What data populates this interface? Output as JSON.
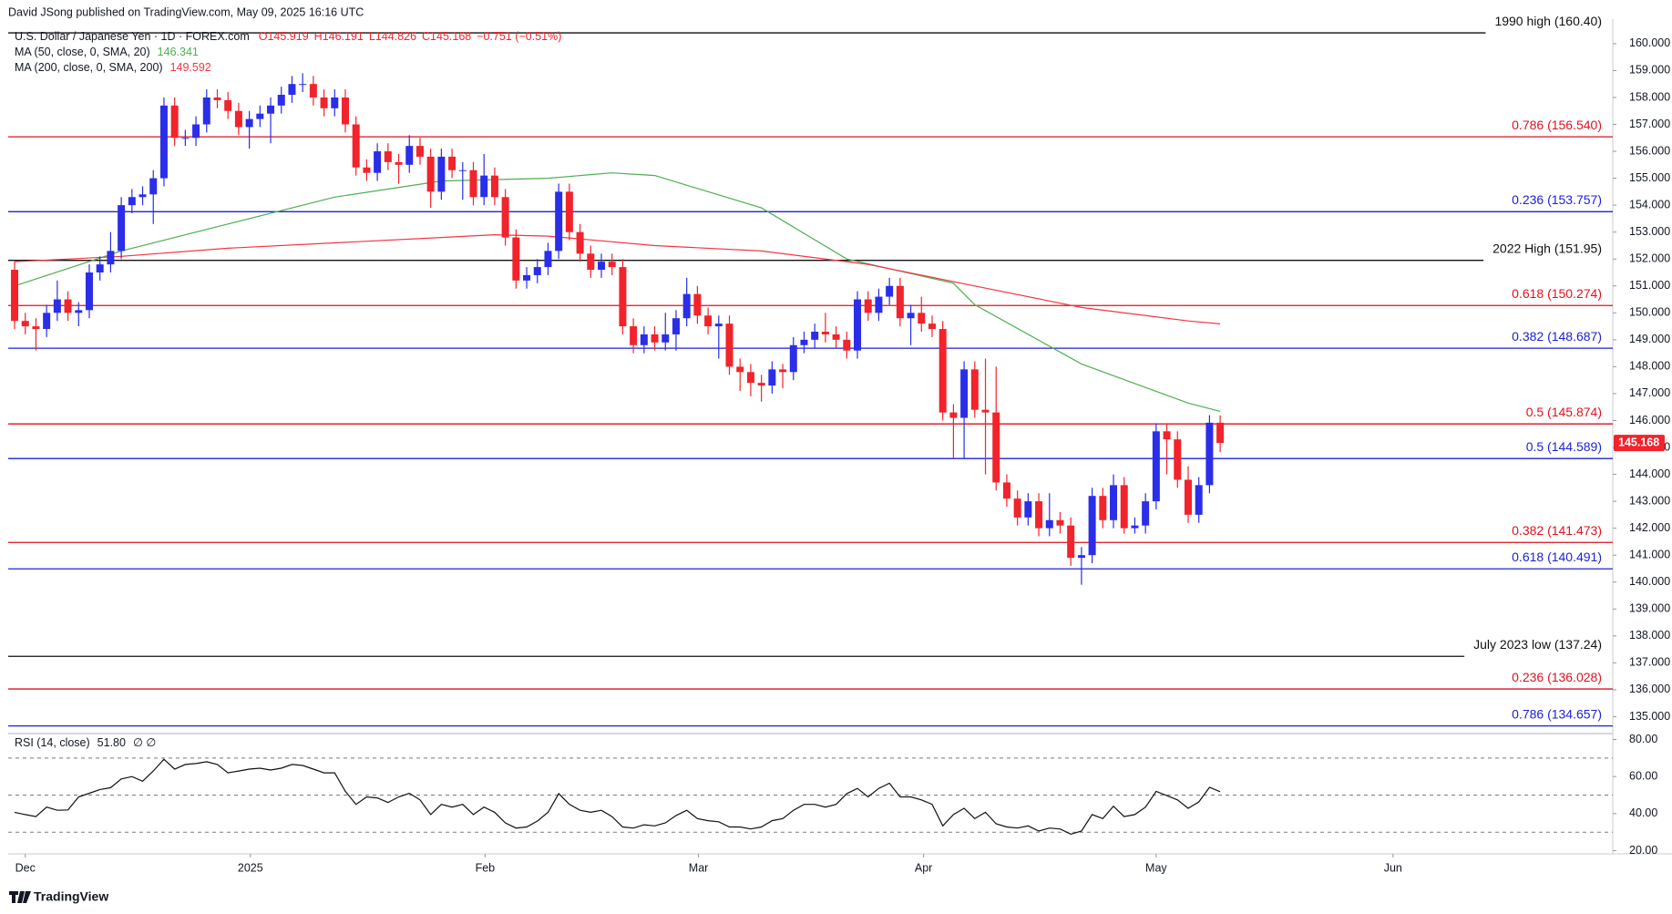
{
  "chart_data": {
    "type": "candlestick",
    "publisher": "David JSong published on TradingView.com, May 09, 2025 16:16 UTC",
    "symbol": "U.S. Dollar / Japanese Yen · 1D · FOREX.com",
    "ohlc_legend": [
      "O145.919",
      "H146.191",
      "L144.826",
      "C145.168",
      "−0.751 (−0.51%)"
    ],
    "brand": "TradingView",
    "xlim": [
      -0.6,
      149.8
    ],
    "xticks": [
      {
        "value": 1,
        "label": "Dec"
      },
      {
        "value": 22.1,
        "label": "2025"
      },
      {
        "value": 44.1,
        "label": "Feb"
      },
      {
        "value": 64.1,
        "label": "Mar"
      },
      {
        "value": 85.2,
        "label": "Apr"
      },
      {
        "value": 107,
        "label": "May"
      },
      {
        "value": 129.2,
        "label": "Jun"
      }
    ],
    "ylim": [
      134.44,
      160.91
    ],
    "yticks": [
      {
        "value": 135,
        "label": "135.000"
      },
      {
        "value": 136,
        "label": "136.000"
      },
      {
        "value": 137,
        "label": "137.000"
      },
      {
        "value": 138,
        "label": "138.000"
      },
      {
        "value": 139,
        "label": "139.000"
      },
      {
        "value": 140,
        "label": "140.000"
      },
      {
        "value": 141,
        "label": "141.000"
      },
      {
        "value": 142,
        "label": "142.000"
      },
      {
        "value": 143,
        "label": "143.000"
      },
      {
        "value": 144,
        "label": "144.000"
      },
      {
        "value": 145,
        "label": "145.000"
      },
      {
        "value": 146,
        "label": "146.000"
      },
      {
        "value": 147,
        "label": "147.000"
      },
      {
        "value": 148,
        "label": "148.000"
      },
      {
        "value": 149,
        "label": "149.000"
      },
      {
        "value": 150,
        "label": "150.000"
      },
      {
        "value": 151,
        "label": "151.000"
      },
      {
        "value": 152,
        "label": "152.000"
      },
      {
        "value": 153,
        "label": "153.000"
      },
      {
        "value": 154,
        "label": "154.000"
      },
      {
        "value": 155,
        "label": "155.000"
      },
      {
        "value": 156,
        "label": "156.000"
      },
      {
        "value": 157,
        "label": "157.000"
      },
      {
        "value": 158,
        "label": "158.000"
      },
      {
        "value": 159,
        "label": "159.000"
      },
      {
        "value": 160,
        "label": "160.000"
      }
    ],
    "candles": {
      "up_color": "#2a2ee8",
      "down_color": "#f2232b",
      "x": [
        0,
        1,
        2,
        3,
        4,
        5,
        6,
        7,
        8,
        9,
        10,
        11,
        12,
        13,
        14,
        15,
        16,
        17,
        18,
        19,
        20,
        21,
        22,
        23,
        24,
        25,
        26,
        27,
        28,
        29,
        30,
        31,
        32,
        33,
        34,
        35,
        36,
        37,
        38,
        39,
        40,
        41,
        42,
        43,
        44,
        45,
        46,
        47,
        48,
        49,
        50,
        51,
        52,
        53,
        54,
        55,
        56,
        57,
        58,
        59,
        60,
        61,
        62,
        63,
        64,
        65,
        66,
        67,
        68,
        69,
        70,
        71,
        72,
        73,
        74,
        75,
        76,
        77,
        78,
        79,
        80,
        81,
        82,
        83,
        84,
        85,
        86,
        87,
        88,
        89,
        90,
        91,
        92,
        93,
        94,
        95,
        96,
        97,
        98,
        99,
        100,
        101,
        102,
        103,
        104,
        105,
        106,
        107,
        108,
        109,
        110,
        111,
        112,
        113
      ],
      "open": [
        151.6,
        149.7,
        149.5,
        149.4,
        150.0,
        150.5,
        150.0,
        150.1,
        151.5,
        151.8,
        152.3,
        154.0,
        154.3,
        154.4,
        155.0,
        157.7,
        156.5,
        156.5,
        157.0,
        158.0,
        157.9,
        157.5,
        156.9,
        157.2,
        157.4,
        157.7,
        158.1,
        158.5,
        158.5,
        158.0,
        157.6,
        158.0,
        157.0,
        155.4,
        155.2,
        156.0,
        155.6,
        155.5,
        156.2,
        155.8,
        154.5,
        155.8,
        155.3,
        155.3,
        154.3,
        155.1,
        154.3,
        152.8,
        151.2,
        151.4,
        151.7,
        152.3,
        154.5,
        153.0,
        152.2,
        151.6,
        151.9,
        151.7,
        149.5,
        148.8,
        149.2,
        148.9,
        149.2,
        149.8,
        150.7,
        149.9,
        149.5,
        149.6,
        148.0,
        147.8,
        147.4,
        147.3,
        147.9,
        147.8,
        148.8,
        149.0,
        149.3,
        149.2,
        149.0,
        148.6,
        150.5,
        150.0,
        150.6,
        151.0,
        149.8,
        150.0,
        149.6,
        149.4,
        146.3,
        146.1,
        147.9,
        146.4,
        146.3,
        143.7,
        143.1,
        142.4,
        143.0,
        142.0,
        142.3,
        142.1,
        140.9,
        141.0,
        143.2,
        142.3,
        143.6,
        142.0,
        142.1,
        143.0,
        145.6,
        145.3,
        143.8,
        142.5,
        143.6,
        145.919
      ],
      "high": [
        151.9,
        150.0,
        149.8,
        150.3,
        151.2,
        150.8,
        150.4,
        151.8,
        152.1,
        153.0,
        154.3,
        154.6,
        154.7,
        155.3,
        158.0,
        158.0,
        156.8,
        157.3,
        158.3,
        158.3,
        158.2,
        157.8,
        157.5,
        157.7,
        158.0,
        158.4,
        158.8,
        158.9,
        158.8,
        158.3,
        158.3,
        158.3,
        157.3,
        155.7,
        156.3,
        156.3,
        155.9,
        156.6,
        156.5,
        156.1,
        156.1,
        156.1,
        155.6,
        155.6,
        155.9,
        155.4,
        154.6,
        153.1,
        151.7,
        152.0,
        152.6,
        154.8,
        154.8,
        153.3,
        152.5,
        152.2,
        152.2,
        152.0,
        149.8,
        149.5,
        149.5,
        150.0,
        150.1,
        151.3,
        151.0,
        150.2,
        149.9,
        149.9,
        148.3,
        148.1,
        147.7,
        148.2,
        148.1,
        149.1,
        149.3,
        149.6,
        150.0,
        149.5,
        149.3,
        150.8,
        150.8,
        150.9,
        151.3,
        151.3,
        150.3,
        150.6,
        149.9,
        149.7,
        146.6,
        148.2,
        148.2,
        148.3,
        148.0,
        144.0,
        143.4,
        143.3,
        143.3,
        143.3,
        142.6,
        142.4,
        141.3,
        143.5,
        143.5,
        144.0,
        143.9,
        142.4,
        143.3,
        145.9,
        145.9,
        145.6,
        144.3,
        143.9,
        146.2,
        146.191
      ],
      "low": [
        149.4,
        149.2,
        148.6,
        149.1,
        149.7,
        149.7,
        149.5,
        149.8,
        151.2,
        151.5,
        152.0,
        153.7,
        154.0,
        153.3,
        154.7,
        156.2,
        156.2,
        156.2,
        156.7,
        157.6,
        157.2,
        156.6,
        156.1,
        156.9,
        156.3,
        157.4,
        157.8,
        158.2,
        157.7,
        157.3,
        157.3,
        156.7,
        155.1,
        154.9,
        154.9,
        155.3,
        154.8,
        155.2,
        155.5,
        153.9,
        154.2,
        155.0,
        154.2,
        154.0,
        154.0,
        154.0,
        152.5,
        150.9,
        150.9,
        151.1,
        151.4,
        152.0,
        152.7,
        151.9,
        151.3,
        151.3,
        151.4,
        149.2,
        148.5,
        148.5,
        148.6,
        148.6,
        148.6,
        149.5,
        149.6,
        149.2,
        148.3,
        147.7,
        147.1,
        146.9,
        146.7,
        147.0,
        147.2,
        147.5,
        148.5,
        148.7,
        148.9,
        148.7,
        148.3,
        148.3,
        149.7,
        149.7,
        150.3,
        149.5,
        148.8,
        149.3,
        149.1,
        146.0,
        144.6,
        144.6,
        146.1,
        144.0,
        143.4,
        142.8,
        142.1,
        142.1,
        141.7,
        141.7,
        141.8,
        140.6,
        139.9,
        140.7,
        142.0,
        142.0,
        141.8,
        141.8,
        141.8,
        142.7,
        144.0,
        143.5,
        142.2,
        142.2,
        143.3,
        144.826
      ],
      "close": [
        149.7,
        149.5,
        149.4,
        150.0,
        150.5,
        150.0,
        150.1,
        151.5,
        151.8,
        152.3,
        154.0,
        154.3,
        154.4,
        155.0,
        157.7,
        156.5,
        156.5,
        157.0,
        158.0,
        157.9,
        157.5,
        156.9,
        157.2,
        157.4,
        157.7,
        158.1,
        158.5,
        158.5,
        158.0,
        157.6,
        158.0,
        157.0,
        155.4,
        155.2,
        156.0,
        155.6,
        155.5,
        156.2,
        155.8,
        154.5,
        155.8,
        155.3,
        155.3,
        154.3,
        155.1,
        154.3,
        152.8,
        151.2,
        151.4,
        151.7,
        152.3,
        154.5,
        153.0,
        152.2,
        151.6,
        151.9,
        151.7,
        149.5,
        148.8,
        149.2,
        148.9,
        149.2,
        149.8,
        150.7,
        149.9,
        149.5,
        149.6,
        148.0,
        147.8,
        147.4,
        147.3,
        147.9,
        147.8,
        148.8,
        149.0,
        149.3,
        149.2,
        149.0,
        148.6,
        150.5,
        150.0,
        150.6,
        151.0,
        149.8,
        150.0,
        149.6,
        149.4,
        146.3,
        146.1,
        147.9,
        146.4,
        146.3,
        143.7,
        143.1,
        142.4,
        143.0,
        142.0,
        142.3,
        142.1,
        140.9,
        141.0,
        143.2,
        142.3,
        143.6,
        142.0,
        142.1,
        143.0,
        145.6,
        145.3,
        143.8,
        142.5,
        143.6,
        145.919,
        145.168
      ]
    },
    "series": [
      {
        "name": "MA (50, close, 0, SMA, 20)",
        "color": "#4caf50",
        "x": [
          0,
          10,
          20,
          30,
          40,
          50,
          56,
          60,
          70,
          78,
          88,
          90,
          100,
          110,
          113
        ],
        "values": [
          151.0,
          152.3,
          153.3,
          154.3,
          154.9,
          155.0,
          155.2,
          155.1,
          153.9,
          152.0,
          151.1,
          150.3,
          148.1,
          146.65,
          146.341
        ]
      },
      {
        "name": "MA (200, close, 0, SMA, 200)",
        "color": "#f23645",
        "x": [
          0,
          10,
          20,
          30,
          40,
          45,
          50,
          60,
          70,
          80,
          90,
          100,
          110,
          113
        ],
        "values": [
          151.9,
          152.1,
          152.4,
          152.6,
          152.8,
          152.9,
          152.85,
          152.5,
          152.3,
          151.8,
          151.0,
          150.2,
          149.7,
          149.592
        ]
      }
    ],
    "levels": [
      {
        "label": "1990 high (160.40)",
        "value": 160.4,
        "color": "#111111"
      },
      {
        "label": "0.786 (156.540)",
        "value": 156.54,
        "color": "#e0111f"
      },
      {
        "label": "0.236 (153.757)",
        "value": 153.757,
        "color": "#1e22d6"
      },
      {
        "label": "2022 High (151.95)",
        "value": 151.95,
        "color": "#111111"
      },
      {
        "label": "0.618 (150.274)",
        "value": 150.274,
        "color": "#e0111f"
      },
      {
        "label": "0.382 (148.687)",
        "value": 148.687,
        "color": "#1e22d6"
      },
      {
        "label": "0.5 (145.874)",
        "value": 145.874,
        "color": "#e0111f"
      },
      {
        "label": "0.5 (144.589)",
        "value": 144.589,
        "color": "#1e22d6"
      },
      {
        "label": "0.382 (141.473)",
        "value": 141.473,
        "color": "#e0111f"
      },
      {
        "label": "0.618 (140.491)",
        "value": 140.491,
        "color": "#1e22d6"
      },
      {
        "label": "July 2023 low (137.24)",
        "value": 137.24,
        "color": "#111111"
      },
      {
        "label": "0.236 (136.028)",
        "value": 136.028,
        "color": "#e0111f"
      },
      {
        "label": "0.786 (134.657)",
        "value": 134.657,
        "color": "#1e22d6"
      }
    ],
    "rsi": {
      "name": "RSI (14, close)",
      "value_label": "51.80",
      "flags": "∅ ∅",
      "color": "#111111",
      "ylim": [
        18.3,
        82.2
      ],
      "yticks": [
        {
          "value": 20,
          "label": "20.00"
        },
        {
          "value": 40,
          "label": "40.00"
        },
        {
          "value": 60,
          "label": "60.00"
        },
        {
          "value": 80,
          "label": "80.00"
        }
      ],
      "levels": [
        30,
        50,
        70
      ],
      "x": [
        0,
        1,
        2,
        3,
        4,
        5,
        6,
        7,
        8,
        9,
        10,
        11,
        12,
        13,
        14,
        15,
        16,
        17,
        18,
        19,
        20,
        21,
        22,
        23,
        24,
        25,
        26,
        27,
        28,
        29,
        30,
        31,
        32,
        33,
        34,
        35,
        36,
        37,
        38,
        39,
        40,
        41,
        42,
        43,
        44,
        45,
        46,
        47,
        48,
        49,
        50,
        51,
        52,
        53,
        54,
        55,
        56,
        57,
        58,
        59,
        60,
        61,
        62,
        63,
        64,
        65,
        66,
        67,
        68,
        69,
        70,
        71,
        72,
        73,
        74,
        75,
        76,
        77,
        78,
        79,
        80,
        81,
        82,
        83,
        84,
        85,
        86,
        87,
        88,
        89,
        90,
        91,
        92,
        93,
        94,
        95,
        96,
        97,
        98,
        99,
        100,
        101,
        102,
        103,
        104,
        105,
        106,
        107,
        108,
        109,
        110,
        111,
        112,
        113
      ],
      "values": [
        40.7,
        39.5,
        38.4,
        43.5,
        41.8,
        42.0,
        49.0,
        51.0,
        53.0,
        54.0,
        58.7,
        60.0,
        57.5,
        63.0,
        69.3,
        64.0,
        66.5,
        67.0,
        68.0,
        66.5,
        62.0,
        63.0,
        64.0,
        64.5,
        63.5,
        64.5,
        66.5,
        66.0,
        64.0,
        62.0,
        62.0,
        52.0,
        45.0,
        49.0,
        48.5,
        46.0,
        49.0,
        51.0,
        47.4,
        39.5,
        45.0,
        43.5,
        45.0,
        39.5,
        43.5,
        40.7,
        35.0,
        32.2,
        32.8,
        36.0,
        40.7,
        50.8,
        45.0,
        41.8,
        40.7,
        41.8,
        38.4,
        32.8,
        32.2,
        34.0,
        33.4,
        35.0,
        39.0,
        41.8,
        37.3,
        36.2,
        35.6,
        32.8,
        32.8,
        31.7,
        32.8,
        36.2,
        37.3,
        41.8,
        45.0,
        45.0,
        43.5,
        45.0,
        50.8,
        53.6,
        49.0,
        53.6,
        56.4,
        49.0,
        49.0,
        47.4,
        45.0,
        33.4,
        39.5,
        42.9,
        37.3,
        40.7,
        34.5,
        32.8,
        32.2,
        33.4,
        30.6,
        32.2,
        31.7,
        28.9,
        30.6,
        39.5,
        37.3,
        44.0,
        38.4,
        39.5,
        43.5,
        52.0,
        49.7,
        47.4,
        42.9,
        46.3,
        54.2,
        51.8
      ]
    }
  }
}
